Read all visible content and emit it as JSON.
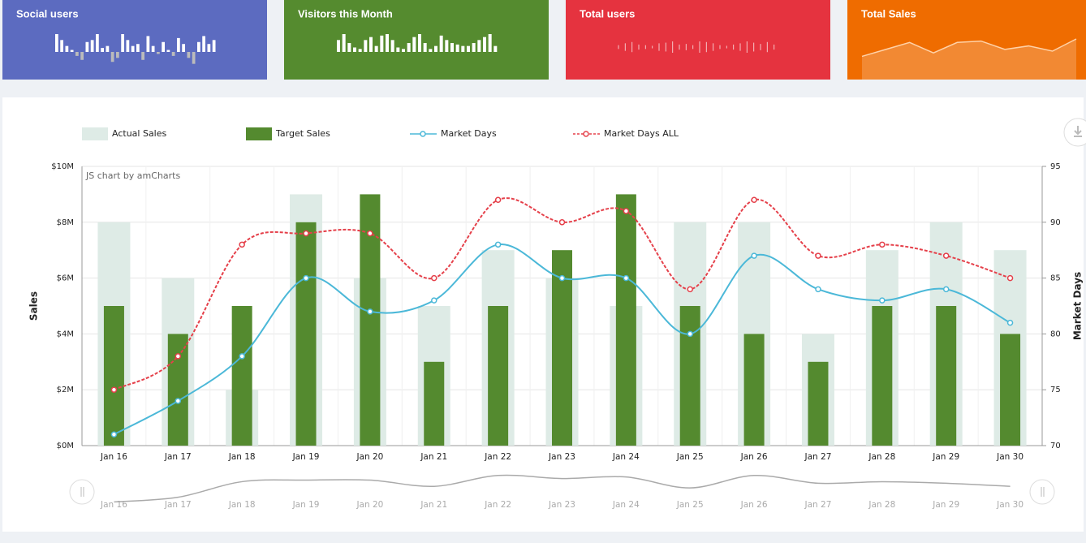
{
  "cards": [
    {
      "title": "Social users",
      "color": "#5c6bc0",
      "style": "bars",
      "sparkline": [
        9,
        6,
        3,
        1,
        -2,
        -4,
        5,
        6,
        9,
        2,
        3,
        -5,
        -3,
        9,
        6,
        3,
        4,
        -4,
        8,
        3,
        -1,
        5,
        1,
        -2,
        7,
        4,
        -3,
        -6,
        5,
        8,
        4,
        6
      ]
    },
    {
      "title": "Visitors this Month",
      "color": "#558b2f",
      "style": "bars",
      "sparkline": [
        8,
        12,
        6,
        3,
        2,
        8,
        10,
        4,
        11,
        12,
        8,
        3,
        2,
        6,
        10,
        12,
        6,
        2,
        4,
        11,
        8,
        6,
        5,
        4,
        4,
        6,
        8,
        10,
        12,
        4
      ]
    },
    {
      "title": "Total users",
      "color": "#e5333f",
      "style": "ticks",
      "sparkline": [
        3,
        6,
        8,
        4,
        3,
        2,
        6,
        7,
        9,
        4,
        5,
        3,
        9,
        8,
        6,
        3,
        2,
        4,
        6,
        9,
        7,
        5,
        8,
        4
      ]
    },
    {
      "title": "Total Sales",
      "color": "#ef6c00",
      "style": "area",
      "sparkline": [
        2,
        4,
        6,
        3,
        6,
        6.4,
        4,
        5,
        3.5,
        7
      ]
    }
  ],
  "chart_data": {
    "type": "combo",
    "credit": "JS chart by amCharts",
    "categories": [
      "Jan 16",
      "Jan 17",
      "Jan 18",
      "Jan 19",
      "Jan 20",
      "Jan 21",
      "Jan 22",
      "Jan 23",
      "Jan 24",
      "Jan 25",
      "Jan 26",
      "Jan 27",
      "Jan 28",
      "Jan 29",
      "Jan 30"
    ],
    "series": [
      {
        "name": "Actual Sales",
        "type": "bar",
        "color": "#deebe6",
        "values": [
          8,
          6,
          2,
          9,
          6,
          5,
          7,
          6,
          5,
          8,
          8,
          4,
          7,
          8,
          7
        ]
      },
      {
        "name": "Target Sales",
        "type": "bar",
        "color": "#548a2f",
        "values": [
          5,
          4,
          5,
          8,
          9,
          3,
          5,
          7,
          9,
          5,
          4,
          3,
          5,
          5,
          4
        ]
      },
      {
        "name": "Market Days",
        "type": "line",
        "axis": "y2",
        "color": "#4bb8d8",
        "values": [
          71,
          74,
          78,
          85,
          82,
          83,
          88,
          85,
          85,
          80,
          87,
          84,
          83,
          84,
          81
        ]
      },
      {
        "name": "Market Days ALL",
        "type": "line",
        "axis": "y2",
        "dashed": true,
        "color": "#e5404a",
        "values": [
          75,
          78,
          88,
          89,
          89,
          85,
          92,
          90,
          91,
          84,
          92,
          87,
          88,
          87,
          85
        ]
      }
    ],
    "ylabel": "Sales",
    "y2label": "Market Days",
    "ylim": [
      0,
      10
    ],
    "yticks": [
      {
        "value": 0,
        "label": "$0M"
      },
      {
        "value": 2,
        "label": "$2M"
      },
      {
        "value": 4,
        "label": "$4M"
      },
      {
        "value": 6,
        "label": "$6M"
      },
      {
        "value": 8,
        "label": "$8M"
      },
      {
        "value": 10,
        "label": "$10M"
      }
    ],
    "y2lim": [
      70,
      95
    ],
    "y2ticks": [
      70,
      75,
      80,
      85,
      90,
      95
    ],
    "grid": true
  }
}
